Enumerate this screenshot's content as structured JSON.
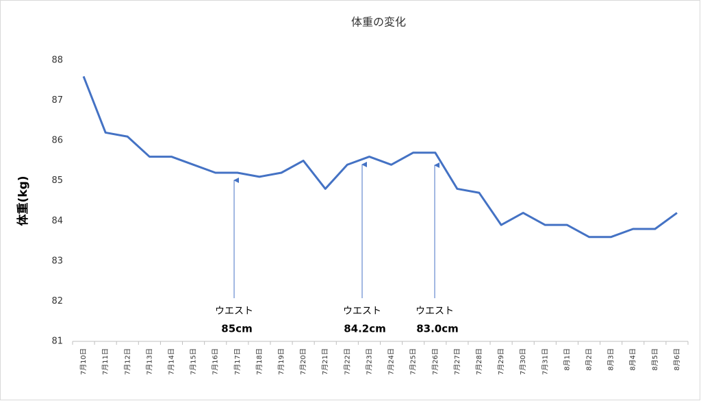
{
  "chart_data": {
    "type": "line",
    "title": "体重の変化",
    "y_label": "体重(kg)",
    "categories": [
      "7月10日",
      "7月11日",
      "7月12日",
      "7月13日",
      "7月14日",
      "7月15日",
      "7月16日",
      "7月17日",
      "7月18日",
      "7月19日",
      "7月20日",
      "7月21日",
      "7月22日",
      "7月23日",
      "7月24日",
      "7月25日",
      "7月26日",
      "7月27日",
      "7月28日",
      "7月29日",
      "7月30日",
      "7月31日",
      "8月1日",
      "8月2日",
      "8月3日",
      "8月4日",
      "8月5日",
      "8月6日"
    ],
    "series": [
      {
        "name": "体重",
        "color": "#4472c4",
        "values": [
          87.6,
          86.2,
          86.1,
          85.6,
          85.6,
          85.4,
          85.2,
          85.2,
          85.1,
          85.2,
          85.5,
          84.8,
          85.4,
          85.6,
          85.4,
          85.7,
          85.7,
          84.8,
          84.7,
          83.9,
          84.2,
          83.9,
          83.9,
          83.6,
          83.6,
          83.8,
          83.8,
          84.2
        ]
      }
    ],
    "ylim": [
      81,
      88
    ],
    "yticks": [
      81,
      82,
      83,
      84,
      85,
      86,
      87,
      88
    ],
    "grid": false,
    "annotations": [
      {
        "text": "ウエスト",
        "value": "85cm"
      },
      {
        "text": "ウエスト",
        "value": "84.2cm"
      },
      {
        "text": "ウエスト",
        "value": "83.0cm"
      }
    ]
  }
}
